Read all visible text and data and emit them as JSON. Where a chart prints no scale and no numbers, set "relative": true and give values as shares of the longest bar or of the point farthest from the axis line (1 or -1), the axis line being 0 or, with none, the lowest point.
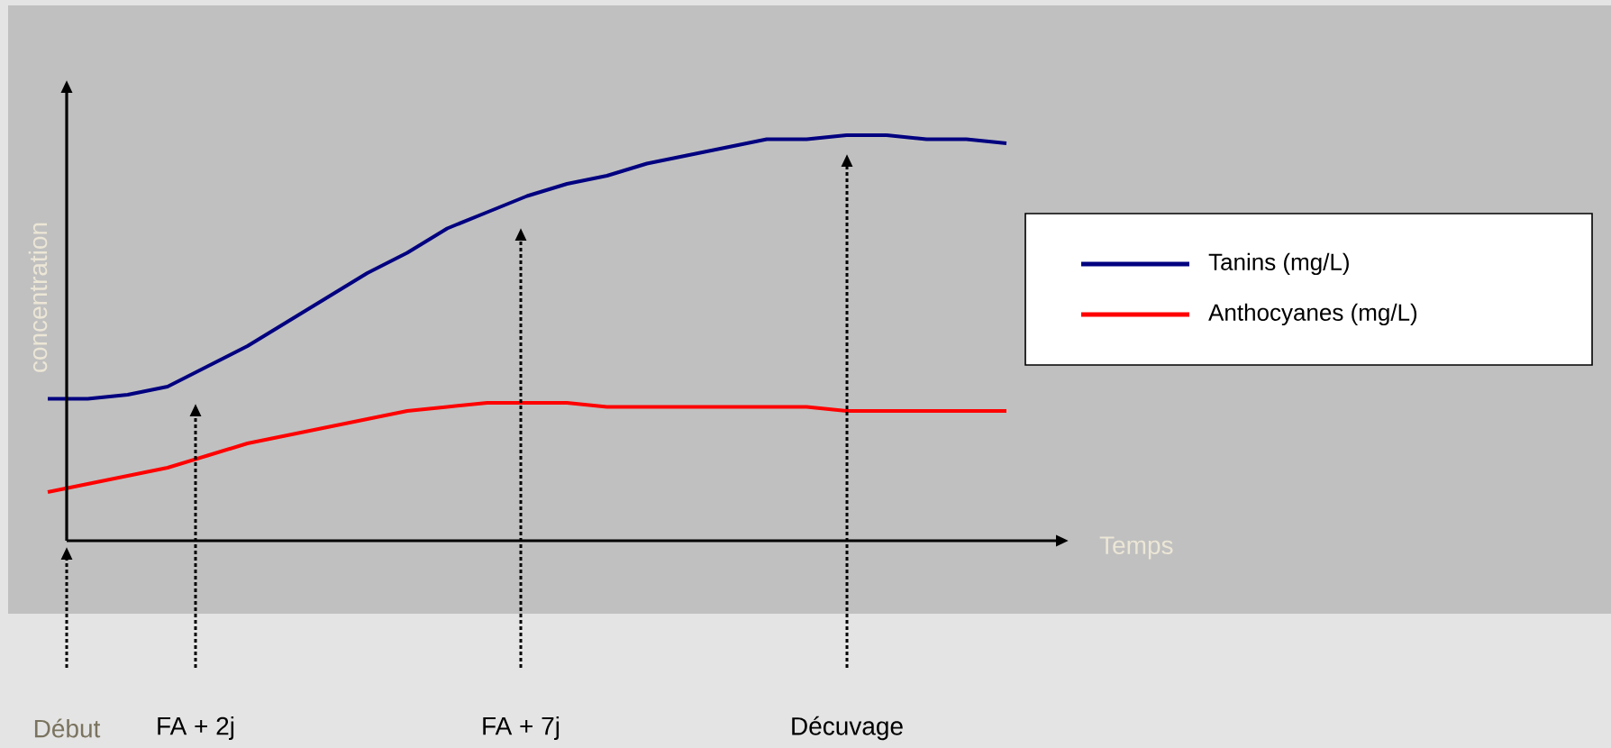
{
  "chart_data": {
    "type": "line",
    "relative": true,
    "xlabel": "Temps",
    "ylabel": "concentration",
    "categories": [
      null,
      null,
      null,
      null,
      null,
      null,
      null,
      null,
      null,
      null,
      null,
      null,
      null,
      null,
      null,
      null,
      null,
      null,
      null,
      null,
      null,
      null,
      null,
      null,
      null
    ],
    "series": [
      {
        "name": "Tanins (mg/L)",
        "color": "#000080",
        "values": [
          0.35,
          0.35,
          0.36,
          0.38,
          0.43,
          0.48,
          0.54,
          0.6,
          0.66,
          0.71,
          0.77,
          0.81,
          0.85,
          0.88,
          0.9,
          0.93,
          0.95,
          0.97,
          0.99,
          0.99,
          1.0,
          1.0,
          0.99,
          0.99,
          0.98
        ]
      },
      {
        "name": "Anthocyanes (mg/L)",
        "color": "#ff0000",
        "values": [
          0.12,
          0.14,
          0.16,
          0.18,
          0.21,
          0.24,
          0.26,
          0.28,
          0.3,
          0.32,
          0.33,
          0.34,
          0.34,
          0.34,
          0.33,
          0.33,
          0.33,
          0.33,
          0.33,
          0.33,
          0.32,
          0.32,
          0.32,
          0.32,
          0.32
        ]
      }
    ],
    "legend": "right",
    "annotations": [
      "Début",
      "FA + 2j",
      "FA + 7j",
      "Décuvage"
    ]
  }
}
